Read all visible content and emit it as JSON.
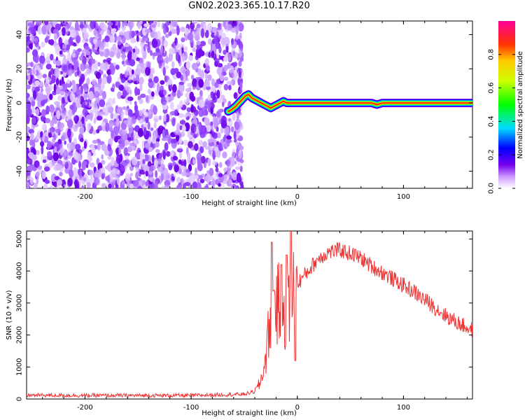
{
  "title": "GN02.2023.365.10.17.R20",
  "chart_data": [
    {
      "type": "heatmap",
      "title": "",
      "xlabel": "Height of straight line (km)",
      "ylabel": "Frequency (Hz)",
      "xlim": [
        -255,
        165
      ],
      "ylim": [
        -50,
        48
      ],
      "xticks": [
        -200,
        -100,
        0,
        100
      ],
      "yticks": [
        -40,
        -20,
        0,
        20,
        40
      ],
      "noise_region_x": [
        -255,
        -60
      ],
      "signal_ridge": {
        "x": [
          -65,
          -62,
          -58,
          -55,
          -52,
          -49,
          -46,
          -43,
          -40,
          -37,
          -34,
          -31,
          -28,
          -25,
          -22,
          -19,
          -16,
          -13,
          -10,
          0,
          40,
          70,
          75,
          80,
          165
        ],
        "y": [
          -5,
          -4,
          -2,
          0,
          2,
          4,
          5,
          3,
          2,
          1,
          0,
          -1,
          -2,
          -3,
          -2,
          -1,
          0,
          1,
          0,
          0,
          0,
          0,
          -1,
          0,
          0
        ]
      },
      "colorbar": {
        "label": "Normalized spectral amplitude",
        "range": [
          0,
          1
        ],
        "ticks": [
          "0.0",
          "0.2",
          "0.4",
          "0.6",
          "0.8"
        ]
      }
    },
    {
      "type": "line",
      "title": "",
      "xlabel": "Height of straight line (km)",
      "ylabel": "SNR (10 * v/v)",
      "xlim": [
        -255,
        165
      ],
      "ylim": [
        0,
        5250
      ],
      "xticks": [
        -200,
        -100,
        0,
        100
      ],
      "yticks": [
        0,
        1000,
        2000,
        3000,
        4000,
        5000
      ],
      "series_color": "#ee3333",
      "envelope": {
        "x": [
          -255,
          -200,
          -100,
          -50,
          -40,
          -35,
          -30,
          -25,
          -20,
          -15,
          -10,
          -5,
          0,
          10,
          20,
          30,
          40,
          50,
          60,
          70,
          80,
          90,
          100,
          110,
          120,
          130,
          140,
          150,
          165
        ],
        "y": [
          120,
          110,
          110,
          150,
          230,
          500,
          1200,
          2700,
          2900,
          3000,
          2600,
          3300,
          3600,
          4000,
          4400,
          4600,
          4650,
          4550,
          4400,
          4150,
          3950,
          3750,
          3550,
          3350,
          3100,
          2850,
          2600,
          2400,
          2150
        ]
      },
      "spikes": [
        {
          "x": -24,
          "y": 4900
        },
        {
          "x": -22,
          "y": 3400
        },
        {
          "x": -15,
          "y": 4200
        },
        {
          "x": -10,
          "y": 4500
        },
        {
          "x": -6,
          "y": 5250
        },
        {
          "x": -2,
          "y": 1200
        }
      ]
    }
  ]
}
